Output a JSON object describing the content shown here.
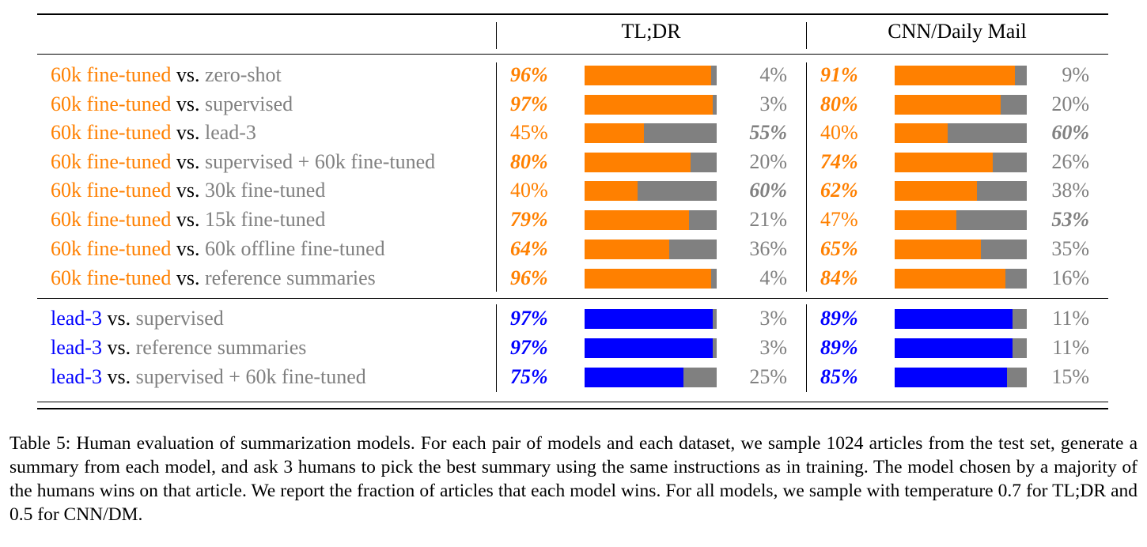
{
  "colors": {
    "orange": "#ff8000",
    "blue": "#0000ff",
    "gray": "#808080"
  },
  "headers": {
    "tldr": "TL;DR",
    "cnn": "CNN/Daily Mail"
  },
  "vs": "vs.",
  "groups": [
    {
      "color": "orange",
      "rows": [
        {
          "model_a": "60k fine-tuned",
          "model_b": "zero-shot",
          "tldr": [
            96,
            4
          ],
          "cnn": [
            91,
            9
          ]
        },
        {
          "model_a": "60k fine-tuned",
          "model_b": "supervised",
          "tldr": [
            97,
            3
          ],
          "cnn": [
            80,
            20
          ]
        },
        {
          "model_a": "60k fine-tuned",
          "model_b": "lead-3",
          "tldr": [
            45,
            55
          ],
          "cnn": [
            40,
            60
          ]
        },
        {
          "model_a": "60k fine-tuned",
          "model_b": "supervised + 60k fine-tuned",
          "tldr": [
            80,
            20
          ],
          "cnn": [
            74,
            26
          ]
        },
        {
          "model_a": "60k fine-tuned",
          "model_b": "30k fine-tuned",
          "tldr": [
            40,
            60
          ],
          "cnn": [
            62,
            38
          ]
        },
        {
          "model_a": "60k fine-tuned",
          "model_b": "15k fine-tuned",
          "tldr": [
            79,
            21
          ],
          "cnn": [
            47,
            53
          ]
        },
        {
          "model_a": "60k fine-tuned",
          "model_b": "60k offline fine-tuned",
          "tldr": [
            64,
            36
          ],
          "cnn": [
            65,
            35
          ]
        },
        {
          "model_a": "60k fine-tuned",
          "model_b": "reference summaries",
          "tldr": [
            96,
            4
          ],
          "cnn": [
            84,
            16
          ]
        }
      ]
    },
    {
      "color": "blue",
      "rows": [
        {
          "model_a": "lead-3",
          "model_b": "supervised",
          "tldr": [
            97,
            3
          ],
          "cnn": [
            89,
            11
          ]
        },
        {
          "model_a": "lead-3",
          "model_b": "reference summaries",
          "tldr": [
            97,
            3
          ],
          "cnn": [
            89,
            11
          ]
        },
        {
          "model_a": "lead-3",
          "model_b": "supervised + 60k fine-tuned",
          "tldr": [
            75,
            25
          ],
          "cnn": [
            85,
            15
          ]
        }
      ]
    }
  ],
  "caption": "Table 5: Human evaluation of summarization models. For each pair of models and each dataset, we sample 1024 articles from the test set, generate a summary from each model, and ask 3 humans to pick the best summary using the same instructions as in training. The model chosen by a majority of the humans wins on that article. We report the fraction of articles that each model wins. For all models, we sample with temperature 0.7 for TL;DR and 0.5 for CNN/DM."
}
